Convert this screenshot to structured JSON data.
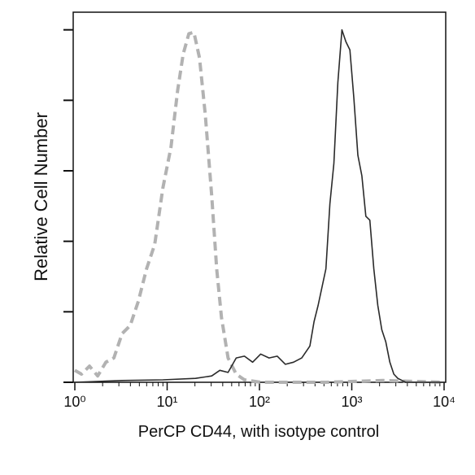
{
  "chart_data": {
    "type": "line",
    "xlabel": "PerCP CD44, with isotype control",
    "ylabel": "Relative Cell Number",
    "xscale": "log",
    "xlim": [
      1,
      10000
    ],
    "xticks": [
      {
        "value": 1,
        "label": "10⁰"
      },
      {
        "value": 10,
        "label": "10¹"
      },
      {
        "value": 100,
        "label": "10²"
      },
      {
        "value": 1000,
        "label": "10³"
      },
      {
        "value": 10000,
        "label": "10⁴"
      }
    ],
    "xminor": true,
    "ylim": [
      0,
      105
    ],
    "yticks": [
      0,
      20,
      40,
      60,
      80,
      100
    ],
    "ytick_labels": false,
    "series": [
      {
        "color": "#b2b2b2",
        "dash": true,
        "x": [
          1,
          1.18,
          1.44,
          1.77,
          2.17,
          2.65,
          3.25,
          3.98,
          4.88,
          5.98,
          7.33,
          8.99,
          11.0,
          13.0,
          14.9,
          17.2,
          19.5,
          22.4,
          25.9,
          30.4,
          34.4,
          38.8,
          45.7,
          56.0,
          68.7,
          103,
          525,
          2178,
          10000
        ],
        "values": [
          3.4,
          2.3,
          4.6,
          1.8,
          5.7,
          6.9,
          13.8,
          16.1,
          23.0,
          32.2,
          39.1,
          55.2,
          66.7,
          82.8,
          93.1,
          98.9,
          99.3,
          92.0,
          75.9,
          52.9,
          32.2,
          18.4,
          6.9,
          2.3,
          0.7,
          0,
          0,
          0.5,
          0
        ]
      },
      {
        "color": "#2a2a2a",
        "dash": false,
        "x": [
          1,
          3.25,
          8.99,
          20.3,
          30.4,
          37.2,
          45.7,
          56.0,
          68.7,
          84.3,
          103,
          127,
          156,
          191,
          234,
          287,
          352,
          390,
          432,
          525,
          580,
          640,
          707,
          782,
          864,
          954,
          1054,
          1164,
          1286,
          1420,
          1570,
          1734,
          1915,
          2116,
          2337,
          2582,
          2852,
          3150,
          3840,
          10000
        ],
        "values": [
          0,
          0.5,
          0.7,
          1.1,
          1.8,
          3.4,
          2.8,
          6.9,
          7.4,
          5.7,
          8.0,
          6.9,
          7.4,
          5.1,
          5.7,
          6.9,
          10.3,
          17.2,
          21.8,
          32.2,
          50.6,
          62.1,
          85.1,
          100,
          96.6,
          94.3,
          80.5,
          64.4,
          58.6,
          47.1,
          46.0,
          32.2,
          21.8,
          14.9,
          11.5,
          5.7,
          2.3,
          1.1,
          0,
          0
        ]
      }
    ]
  }
}
